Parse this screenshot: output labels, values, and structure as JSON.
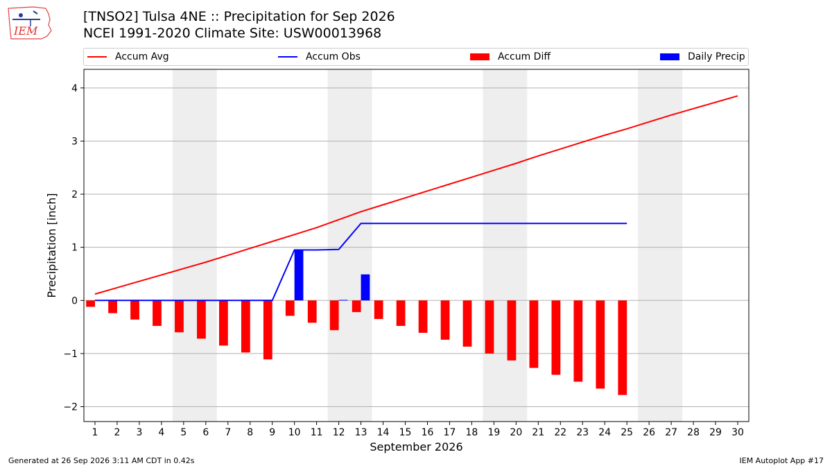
{
  "header": {
    "title_line1": "[TNSO2] Tulsa 4NE :: Precipitation for Sep 2026",
    "title_line2": "NCEI 1991-2020 Climate Site: USW00013968",
    "logo_text": "IEM"
  },
  "colors": {
    "accum_avg": "#ff0000",
    "accum_obs": "#0000ff",
    "accum_diff": "#ff0000",
    "daily_precip": "#0000ff",
    "weekend_band": "#eeeeee",
    "grid": "#b0b0b0"
  },
  "legend": [
    {
      "label": "Accum Avg",
      "kind": "line",
      "color": "#ff0000"
    },
    {
      "label": "Accum Obs",
      "kind": "line",
      "color": "#0000ff"
    },
    {
      "label": "Accum Diff",
      "kind": "box",
      "color": "#ff0000"
    },
    {
      "label": "Daily Precip",
      "kind": "box",
      "color": "#0000ff"
    }
  ],
  "chart_data": {
    "type": "bar",
    "xlabel": "September 2026",
    "ylabel": "Precipitation [inch]",
    "xlim": [
      0.5,
      30.5
    ],
    "ylim": [
      -2.28,
      4.35
    ],
    "yticks": [
      -2,
      -1,
      0,
      1,
      2,
      3,
      4
    ],
    "ytick_labels": [
      "−2",
      "−1",
      "0",
      "1",
      "2",
      "3",
      "4"
    ],
    "days": [
      1,
      2,
      3,
      4,
      5,
      6,
      7,
      8,
      9,
      10,
      11,
      12,
      13,
      14,
      15,
      16,
      17,
      18,
      19,
      20,
      21,
      22,
      23,
      24,
      25,
      26,
      27,
      28,
      29,
      30
    ],
    "weekend_bands": [
      [
        4.5,
        6.5
      ],
      [
        11.5,
        13.5
      ],
      [
        18.5,
        20.5
      ],
      [
        25.5,
        27.5
      ]
    ],
    "grid": "y",
    "series": [
      {
        "name": "Accum Avg",
        "kind": "line",
        "x": [
          1,
          2,
          3,
          4,
          5,
          6,
          7,
          8,
          9,
          10,
          11,
          12,
          13,
          14,
          15,
          16,
          17,
          18,
          19,
          20,
          21,
          22,
          23,
          24,
          25,
          26,
          27,
          28,
          29,
          30
        ],
        "values": [
          0.12,
          0.24,
          0.36,
          0.48,
          0.6,
          0.72,
          0.85,
          0.98,
          1.11,
          1.24,
          1.37,
          1.52,
          1.67,
          1.8,
          1.93,
          2.06,
          2.19,
          2.32,
          2.45,
          2.58,
          2.72,
          2.85,
          2.98,
          3.11,
          3.23,
          3.36,
          3.49,
          3.61,
          3.73,
          3.85
        ]
      },
      {
        "name": "Accum Obs",
        "kind": "line",
        "x": [
          1,
          2,
          3,
          4,
          5,
          6,
          7,
          8,
          9,
          10,
          11,
          12,
          13,
          14,
          15,
          16,
          17,
          18,
          19,
          20,
          21,
          22,
          23,
          24,
          25
        ],
        "values": [
          0,
          0,
          0,
          0,
          0,
          0,
          0,
          0,
          0,
          0.95,
          0.95,
          0.96,
          1.45,
          1.45,
          1.45,
          1.45,
          1.45,
          1.45,
          1.45,
          1.45,
          1.45,
          1.45,
          1.45,
          1.45,
          1.45
        ]
      },
      {
        "name": "Accum Diff",
        "kind": "bar",
        "x": [
          1,
          2,
          3,
          4,
          5,
          6,
          7,
          8,
          9,
          10,
          11,
          12,
          13,
          14,
          15,
          16,
          17,
          18,
          19,
          20,
          21,
          22,
          23,
          24,
          25
        ],
        "values": [
          -0.12,
          -0.24,
          -0.36,
          -0.48,
          -0.6,
          -0.72,
          -0.85,
          -0.98,
          -1.11,
          -0.29,
          -0.42,
          -0.56,
          -0.22,
          -0.35,
          -0.48,
          -0.61,
          -0.74,
          -0.87,
          -1.0,
          -1.13,
          -1.27,
          -1.4,
          -1.53,
          -1.66,
          -1.78
        ]
      },
      {
        "name": "Daily Precip",
        "kind": "bar",
        "x": [
          10,
          12,
          13
        ],
        "values": [
          0.95,
          0.01,
          0.49
        ]
      }
    ]
  },
  "footer": {
    "generated": "Generated at 26 Sep 2026 3:11 AM CDT in 0.42s",
    "app": "IEM Autoplot App #17"
  }
}
